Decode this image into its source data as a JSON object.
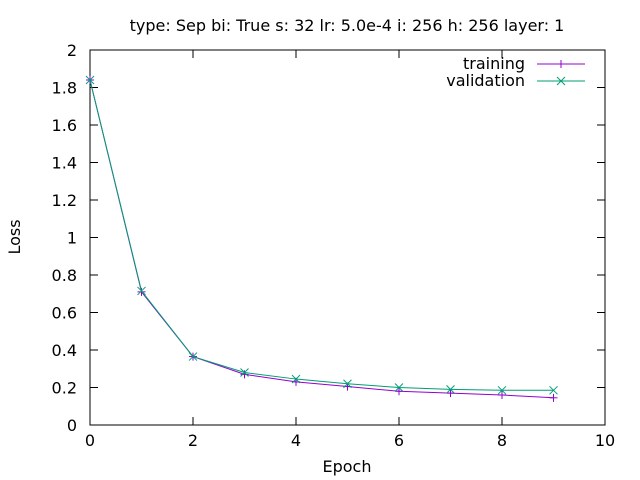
{
  "chart_data": {
    "type": "line",
    "title": "type: Sep bi: True s: 32 lr: 5.0e-4 i: 256 h: 256 layer: 1",
    "xlabel": "Epoch",
    "ylabel": "Loss",
    "xlim": [
      0,
      10
    ],
    "ylim": [
      0,
      2
    ],
    "x_ticks": [
      0,
      2,
      4,
      6,
      8,
      10
    ],
    "y_ticks": [
      0,
      0.2,
      0.4,
      0.6,
      0.8,
      1,
      1.2,
      1.4,
      1.6,
      1.8,
      2
    ],
    "x_tick_labels": [
      "0",
      "2",
      "4",
      "6",
      "8",
      "10"
    ],
    "y_tick_labels": [
      "0",
      "0.2",
      "0.4",
      "0.6",
      "0.8",
      "1",
      "1.2",
      "1.4",
      "1.6",
      "1.8",
      "2"
    ],
    "grid": false,
    "legend_position": "top-right",
    "x": [
      0,
      1,
      2,
      3,
      4,
      5,
      6,
      7,
      8,
      9
    ],
    "series": [
      {
        "name": "training",
        "color": "#9400d3",
        "marker": "plus",
        "values": [
          1.84,
          0.71,
          0.365,
          0.27,
          0.23,
          0.205,
          0.18,
          0.17,
          0.16,
          0.145
        ]
      },
      {
        "name": "validation",
        "color": "#009e73",
        "marker": "cross",
        "values": [
          1.84,
          0.715,
          0.365,
          0.28,
          0.245,
          0.22,
          0.2,
          0.19,
          0.185,
          0.185
        ]
      }
    ]
  }
}
